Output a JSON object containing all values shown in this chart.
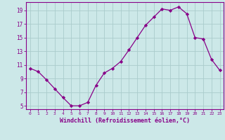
{
  "x": [
    0,
    1,
    2,
    3,
    4,
    5,
    6,
    7,
    8,
    9,
    10,
    11,
    12,
    13,
    14,
    15,
    16,
    17,
    18,
    19,
    20,
    21,
    22,
    23
  ],
  "y": [
    10.5,
    10.0,
    8.8,
    7.5,
    6.2,
    5.0,
    5.0,
    5.5,
    8.0,
    9.8,
    10.5,
    11.5,
    13.2,
    15.0,
    16.8,
    18.0,
    19.2,
    19.0,
    19.5,
    18.5,
    15.0,
    14.8,
    11.8,
    10.2
  ],
  "line_color": "#880088",
  "marker": "D",
  "marker_size": 2.2,
  "bg_color": "#cce8e8",
  "grid_color": "#aacccc",
  "xlabel": "Windchill (Refroidissement éolien,°C)",
  "ylabel_ticks": [
    5,
    7,
    9,
    11,
    13,
    15,
    17,
    19
  ],
  "xtick_labels": [
    "0",
    "1",
    "2",
    "3",
    "4",
    "5",
    "6",
    "7",
    "8",
    "9",
    "10",
    "11",
    "12",
    "13",
    "14",
    "15",
    "16",
    "17",
    "18",
    "19",
    "20",
    "21",
    "22",
    "23"
  ],
  "xlim": [
    -0.5,
    23.5
  ],
  "ylim": [
    4.5,
    20.2
  ],
  "xlabel_color": "#880088",
  "tick_color": "#880088",
  "axis_color": "#880088"
}
